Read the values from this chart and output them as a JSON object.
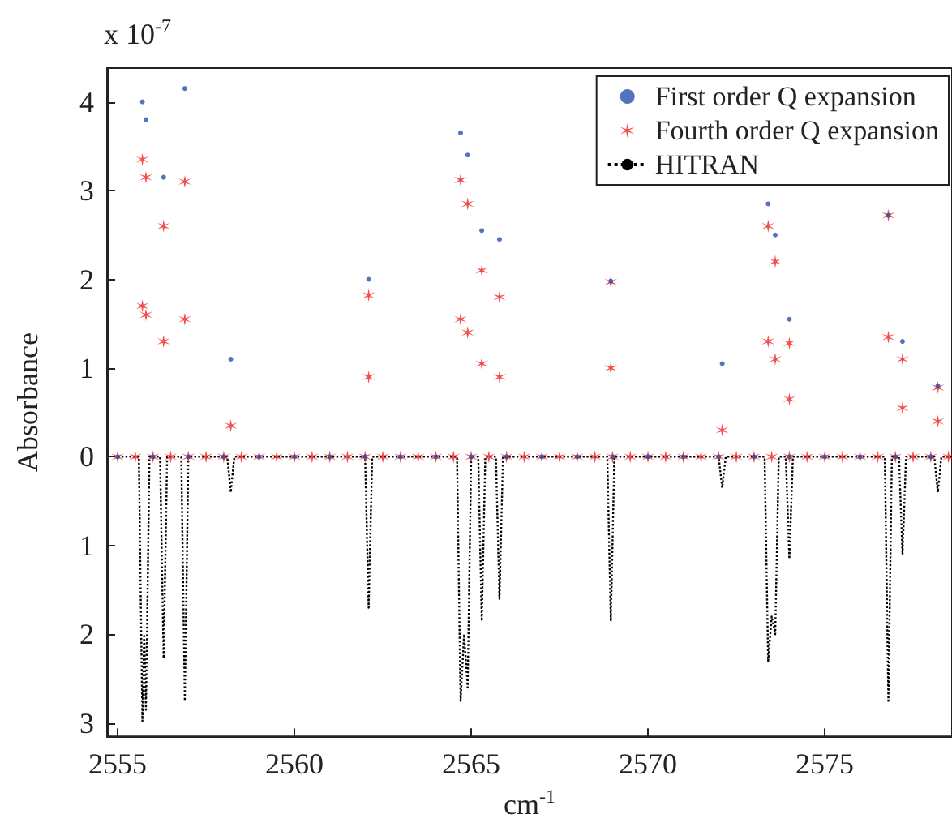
{
  "chart_data": {
    "type": "scatter",
    "xlabel": "cm$^{-1}$",
    "ylabel": "Absorbance",
    "annotations": [
      "x 10$^{-7}$"
    ],
    "xlim": [
      2554.7,
      2578.6
    ],
    "ylim": [
      -3.15,
      4.38
    ],
    "xticks": [
      2555,
      2560,
      2565,
      2570,
      2575
    ],
    "yticks": [
      {
        "value": -3,
        "label": "3"
      },
      {
        "value": -2,
        "label": "2"
      },
      {
        "value": -1,
        "label": "1"
      },
      0,
      1,
      2,
      3,
      4
    ],
    "grid": false,
    "legend": "top right",
    "series": [
      {
        "name": "First order Q expansion",
        "marker": "circle",
        "color": "#2b4fae",
        "x": [
          2555,
          2556,
          2557,
          2558,
          2559,
          2560,
          2561,
          2562,
          2563,
          2564,
          2565,
          2566,
          2567,
          2568,
          2569,
          2570,
          2571,
          2572,
          2573,
          2574,
          2575,
          2576,
          2577,
          2578,
          2555.7,
          2555.8,
          2556.3,
          2556.9,
          2558.2,
          2562.1,
          2564.7,
          2564.9,
          2565.3,
          2565.8,
          2568.95,
          2572.1,
          2573.4,
          2573.6,
          2574.0,
          2576.8,
          2577.2,
          2578.2
        ],
        "values": [
          0,
          0,
          0,
          0,
          0,
          0,
          0,
          0,
          0,
          0,
          0,
          0,
          0,
          0,
          0,
          0,
          0,
          0,
          0,
          0,
          0,
          0,
          0,
          0,
          4.0,
          3.8,
          3.15,
          4.15,
          1.1,
          2.0,
          3.65,
          3.4,
          2.55,
          2.45,
          1.98,
          1.05,
          2.85,
          2.5,
          1.55,
          2.72,
          1.3,
          0.8
        ]
      },
      {
        "name": "Fourth order Q expansion",
        "marker": "cross",
        "color": "#ee2222",
        "x": [
          2555,
          2555.5,
          2556,
          2556.5,
          2557,
          2557.5,
          2558,
          2558.5,
          2559,
          2559.5,
          2560,
          2560.5,
          2561,
          2561.5,
          2562,
          2562.5,
          2563,
          2563.5,
          2564,
          2564.5,
          2565,
          2565.5,
          2566,
          2566.5,
          2567,
          2567.5,
          2568,
          2568.5,
          2569,
          2569.5,
          2570,
          2570.5,
          2571,
          2571.5,
          2572,
          2572.5,
          2573,
          2573.5,
          2574,
          2574.5,
          2575,
          2575.5,
          2576,
          2576.5,
          2577,
          2577.5,
          2578,
          2578.5,
          2555.7,
          2555.7,
          2555.8,
          2555.8,
          2556.3,
          2556.3,
          2556.9,
          2556.9,
          2558.2,
          2562.1,
          2562.1,
          2564.7,
          2564.7,
          2564.9,
          2564.9,
          2565.3,
          2565.3,
          2565.8,
          2565.8,
          2568.95,
          2568.95,
          2572.1,
          2573.4,
          2573.4,
          2573.6,
          2573.6,
          2574.0,
          2574.0,
          2576.8,
          2576.8,
          2577.2,
          2577.2,
          2578.2,
          2578.2
        ],
        "values": [
          0,
          0,
          0,
          0,
          0,
          0,
          0,
          0,
          0,
          0,
          0,
          0,
          0,
          0,
          0,
          0,
          0,
          0,
          0,
          0,
          0,
          0,
          0,
          0,
          0,
          0,
          0,
          0,
          0,
          0,
          0,
          0,
          0,
          0,
          0,
          0,
          0,
          0,
          0,
          0,
          0,
          0,
          0,
          0,
          0,
          0,
          0,
          0,
          3.35,
          1.7,
          3.15,
          1.6,
          2.6,
          1.3,
          3.1,
          1.55,
          0.35,
          1.82,
          0.9,
          3.12,
          1.55,
          2.85,
          1.4,
          2.1,
          1.05,
          1.8,
          0.9,
          1.97,
          1.0,
          0.3,
          2.6,
          1.3,
          2.2,
          1.1,
          1.28,
          0.65,
          2.72,
          1.35,
          1.1,
          0.55,
          0.78,
          0.4
        ]
      },
      {
        "name": "HITRAN",
        "type": "line",
        "marker": "none",
        "line_style": "dotted",
        "color": "#000000",
        "x": [
          2555,
          2555.6,
          2555.7,
          2555.75,
          2555.8,
          2555.9,
          2556.2,
          2556.3,
          2556.4,
          2556.8,
          2556.9,
          2557,
          2558.1,
          2558.2,
          2558.3,
          2562,
          2562.1,
          2562.2,
          2564.6,
          2564.7,
          2564.8,
          2564.9,
          2565,
          2565.2,
          2565.3,
          2565.4,
          2565.7,
          2565.8,
          2565.9,
          2568.85,
          2568.95,
          2569.05,
          2572,
          2572.1,
          2572.2,
          2573.3,
          2573.4,
          2573.5,
          2573.6,
          2573.7,
          2573.9,
          2574,
          2574.1,
          2576.7,
          2576.8,
          2576.9,
          2577.1,
          2577.2,
          2577.3,
          2578.1,
          2578.2,
          2578.3,
          2578.6
        ],
        "values": [
          0,
          0,
          -2.98,
          -2,
          -2.85,
          0,
          0,
          -2.27,
          0,
          0,
          -2.75,
          0,
          0,
          -0.4,
          0,
          0,
          -1.7,
          0,
          0,
          -2.75,
          -2,
          -2.6,
          0,
          0,
          -1.85,
          0,
          0,
          -1.6,
          0,
          0,
          -1.85,
          0,
          0,
          -0.35,
          0,
          0,
          -2.3,
          -1.8,
          -2.0,
          0,
          0,
          -1.15,
          0,
          0,
          -2.75,
          0,
          0,
          -1.1,
          0,
          0,
          -0.4,
          0,
          0
        ]
      }
    ]
  }
}
